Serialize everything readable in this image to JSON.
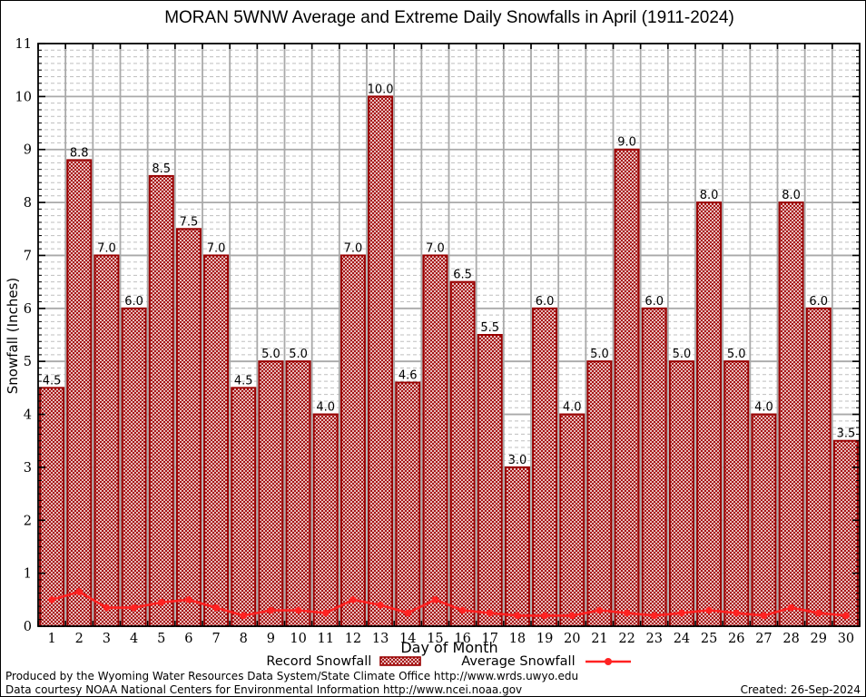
{
  "chart_data": {
    "type": "bar",
    "title": "MORAN 5WNW Average and Extreme Daily Snowfalls in April (1911-2024)",
    "xlabel": "Day of Month",
    "ylabel": "Snowfall (Inches)",
    "ylim": [
      0,
      11
    ],
    "grid": true,
    "legend_position": "bottom",
    "categories": [
      1,
      2,
      3,
      4,
      5,
      6,
      7,
      8,
      9,
      10,
      11,
      12,
      13,
      14,
      15,
      16,
      17,
      18,
      19,
      20,
      21,
      22,
      23,
      24,
      25,
      26,
      27,
      28,
      29,
      30
    ],
    "series": [
      {
        "name": "Record Snowfall",
        "type": "bar",
        "color": "#990000",
        "values": [
          4.5,
          8.8,
          7.0,
          6.0,
          8.5,
          7.5,
          7.0,
          4.5,
          5.0,
          5.0,
          4.0,
          7.0,
          10.0,
          4.6,
          7.0,
          6.5,
          5.5,
          3.0,
          6.0,
          4.0,
          5.0,
          9.0,
          6.0,
          5.0,
          8.0,
          5.0,
          4.0,
          8.0,
          6.0,
          3.5
        ]
      },
      {
        "name": "Average Snowfall",
        "type": "line",
        "color": "#ff2222",
        "values": [
          0.5,
          0.65,
          0.35,
          0.35,
          0.45,
          0.5,
          0.35,
          0.2,
          0.3,
          0.3,
          0.25,
          0.5,
          0.4,
          0.25,
          0.5,
          0.3,
          0.25,
          0.2,
          0.2,
          0.2,
          0.3,
          0.25,
          0.2,
          0.25,
          0.3,
          0.25,
          0.2,
          0.35,
          0.25,
          0.2
        ]
      }
    ],
    "grid_color": "#a9a9a9",
    "minor_grid_color": "#bfbfbf"
  },
  "footer": {
    "line1": "Produced by the Wyoming Water Resources Data System/State Climate Office http://www.wrds.uwyo.edu",
    "line2": "Data courtesy NOAA National Centers for Environmental Information http://www.ncei.noaa.gov",
    "created": "Created: 26-Sep-2024"
  }
}
